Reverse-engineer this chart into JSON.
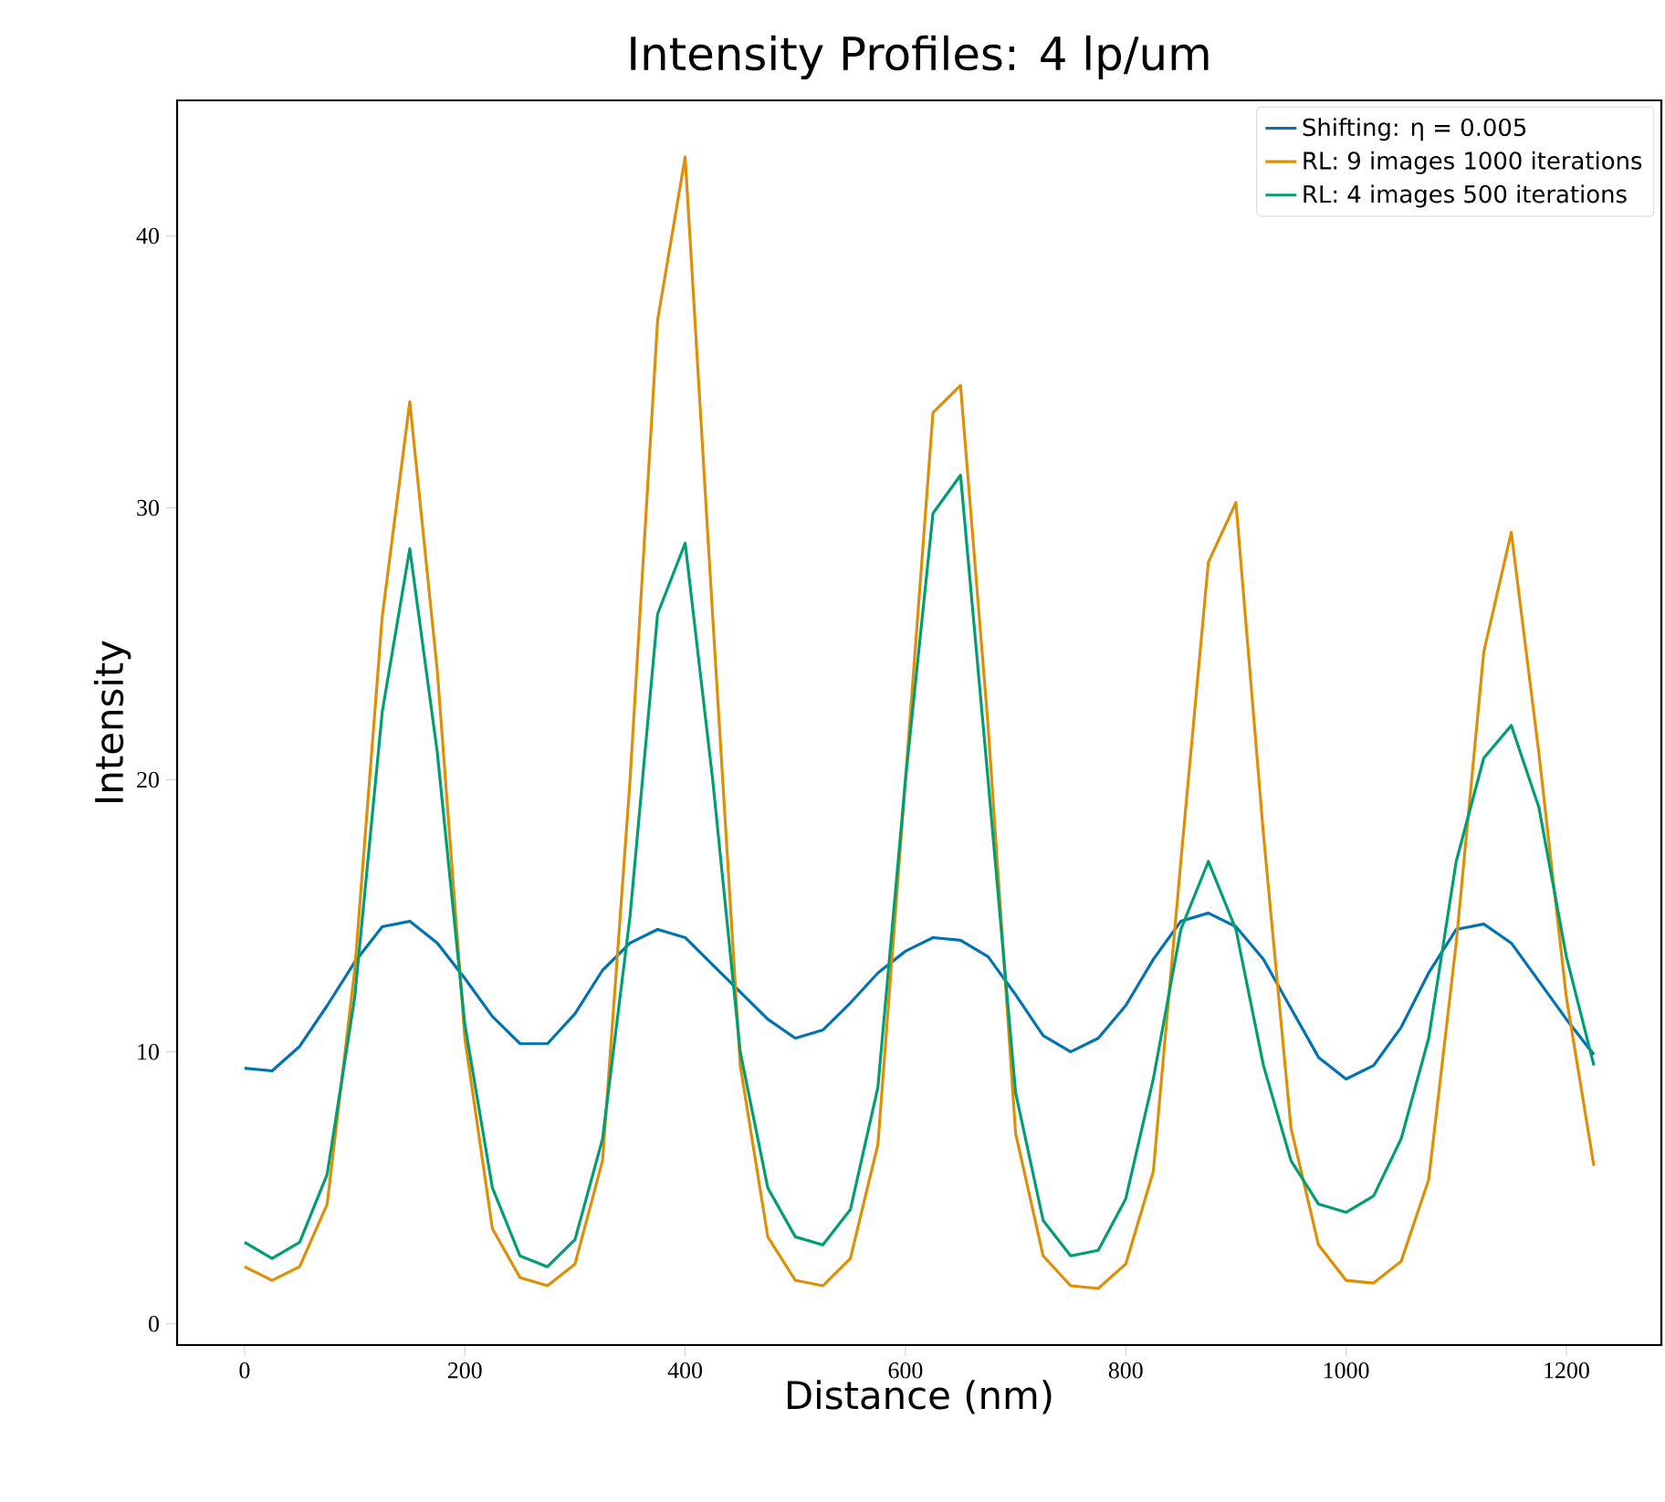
{
  "chart_data": {
    "type": "line",
    "title": "Intensity Profiles: 4 lp/um",
    "xlabel": "Distance (nm)",
    "ylabel": "Intensity",
    "x": [
      0,
      25,
      50,
      75,
      100,
      125,
      150,
      175,
      200,
      225,
      250,
      275,
      300,
      325,
      350,
      375,
      400,
      425,
      450,
      475,
      500,
      525,
      550,
      575,
      600,
      625,
      650,
      675,
      700,
      725,
      750,
      775,
      800,
      825,
      850,
      875,
      900,
      925,
      950,
      975,
      1000,
      1025,
      1050,
      1075,
      1100,
      1125,
      1150,
      1175,
      1200,
      1225
    ],
    "series": [
      {
        "name": "Shifting: η = 0.005",
        "color": "#0173b2",
        "values": [
          9.4,
          9.3,
          10.2,
          11.7,
          13.3,
          14.6,
          14.8,
          14.0,
          12.7,
          11.3,
          10.3,
          10.3,
          11.4,
          13.0,
          14.0,
          14.5,
          14.2,
          13.2,
          12.2,
          11.2,
          10.5,
          10.8,
          11.8,
          12.9,
          13.7,
          14.2,
          14.1,
          13.5,
          12.1,
          10.6,
          10.0,
          10.5,
          11.7,
          13.4,
          14.8,
          15.1,
          14.6,
          13.4,
          11.6,
          9.8,
          9.0,
          9.5,
          10.9,
          12.9,
          14.5,
          14.7,
          14.0,
          12.6,
          11.2,
          9.9
        ]
      },
      {
        "name": "RL: 9 images 1000 iterations",
        "color": "#de8f05",
        "values": [
          2.1,
          1.6,
          2.1,
          4.4,
          13,
          26,
          33.9,
          24,
          10.5,
          3.5,
          1.7,
          1.4,
          2.2,
          6,
          20,
          36.9,
          42.9,
          26,
          9.5,
          3.2,
          1.6,
          1.4,
          2.4,
          6.6,
          20,
          33.5,
          34.5,
          22,
          7,
          2.5,
          1.4,
          1.3,
          2.2,
          5.6,
          17,
          28,
          30.2,
          18,
          7.2,
          2.9,
          1.6,
          1.5,
          2.3,
          5.3,
          14,
          24.7,
          29.1,
          21,
          12,
          5.8
        ]
      },
      {
        "name": "RL: 4 images 500 iterations",
        "color": "#029e73",
        "values": [
          3.0,
          2.4,
          3.0,
          5.5,
          12,
          22.5,
          28.5,
          21,
          11,
          5,
          2.5,
          2.1,
          3.1,
          6.8,
          15,
          26.1,
          28.7,
          20,
          10,
          5,
          3.2,
          2.9,
          4.2,
          8.7,
          20,
          29.8,
          31.2,
          20,
          8.5,
          3.8,
          2.5,
          2.7,
          4.6,
          9,
          14.5,
          17,
          14.5,
          9.5,
          6,
          4.4,
          4.1,
          4.7,
          6.8,
          10.5,
          17,
          20.8,
          22,
          19,
          13.5,
          9.5
        ]
      }
    ],
    "xlim": [
      -61.25,
      1286.25
    ],
    "ylim": [
      -0.78,
      44.98
    ],
    "xticks": [
      0,
      200,
      400,
      600,
      800,
      1000,
      1200
    ],
    "yticks": [
      0,
      10,
      20,
      30,
      40
    ],
    "legend": "top right"
  }
}
